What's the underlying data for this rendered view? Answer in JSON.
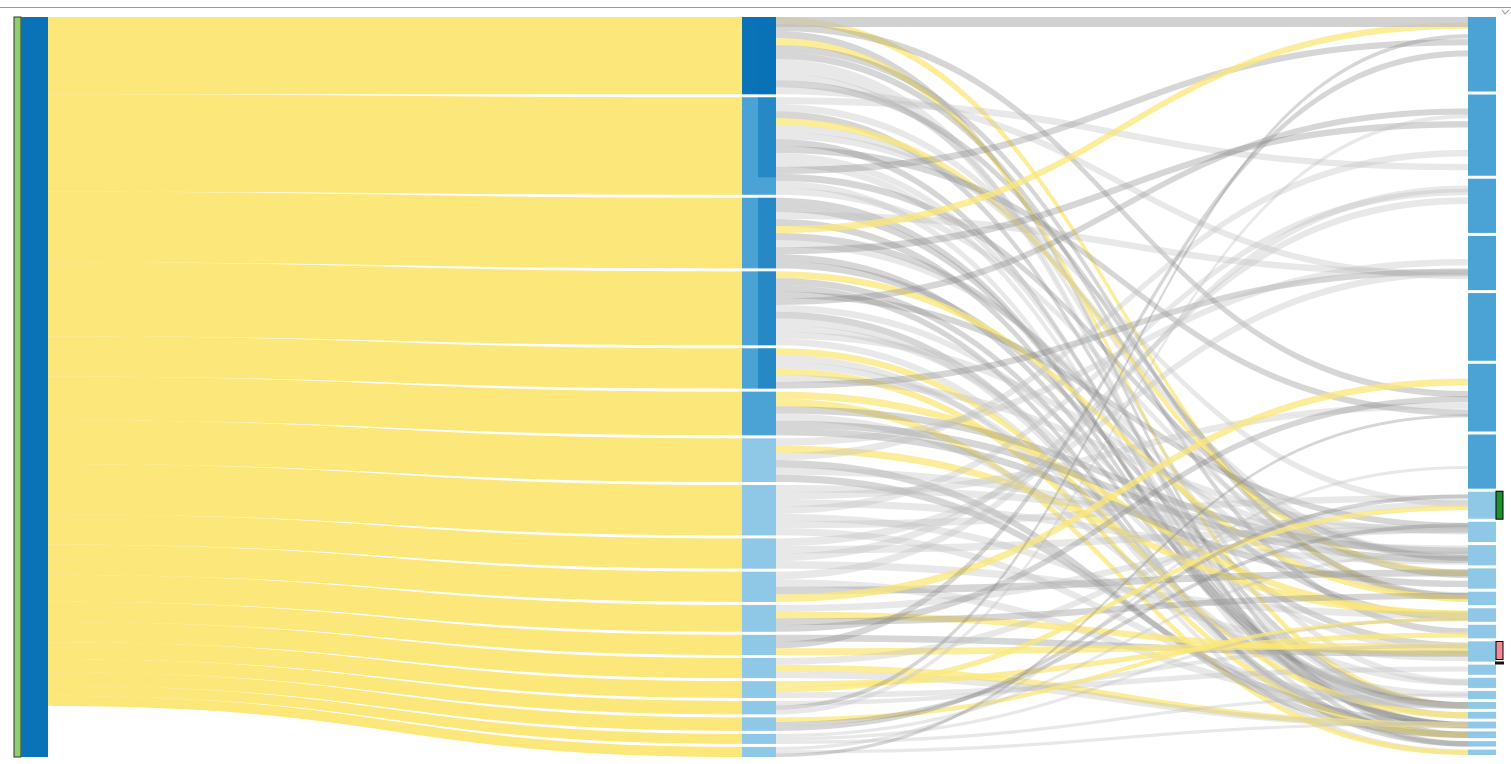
{
  "colors": {
    "flow_highlight": "#fbe77a",
    "flow_muted": "#bdbdbd",
    "flow_dark": "#8a8a8a",
    "node_root_edge": "#8fcf6f",
    "node_dark": "#0a72b6",
    "node_mid": "#4aa3d4",
    "node_light": "#8fc7e6",
    "marker_green": "#1f8f2e",
    "marker_pink": "#f08a96",
    "marker_black": "#111111"
  },
  "chart_data": {
    "type": "sankey",
    "columns": 3,
    "first_level_share": [
      0.115,
      0.145,
      0.105,
      0.11,
      0.06,
      0.065,
      0.065,
      0.075,
      0.045,
      0.045,
      0.04,
      0.03,
      0.03,
      0.025,
      0.02,
      0.02,
      0.015,
      0.015
    ],
    "first_level_shade": [
      "dark",
      "mid",
      "mid",
      "mid",
      "mid",
      "mid",
      "light",
      "light",
      "light",
      "light",
      "light",
      "light",
      "light",
      "light",
      "light",
      "light",
      "light",
      "light"
    ],
    "last_column_share": [
      0.11,
      0.12,
      0.08,
      0.08,
      0.1,
      0.1,
      0.08,
      0.04,
      0.03,
      0.03,
      0.03,
      0.02,
      0.02,
      0.02,
      0.03,
      0.015,
      0.015,
      0.012,
      0.01,
      0.01,
      0.01,
      0.01,
      0.008,
      0.008
    ],
    "marked_last_nodes": [
      {
        "index": 7,
        "marker": "green"
      },
      {
        "index": 14,
        "marker": "pink"
      }
    ]
  }
}
